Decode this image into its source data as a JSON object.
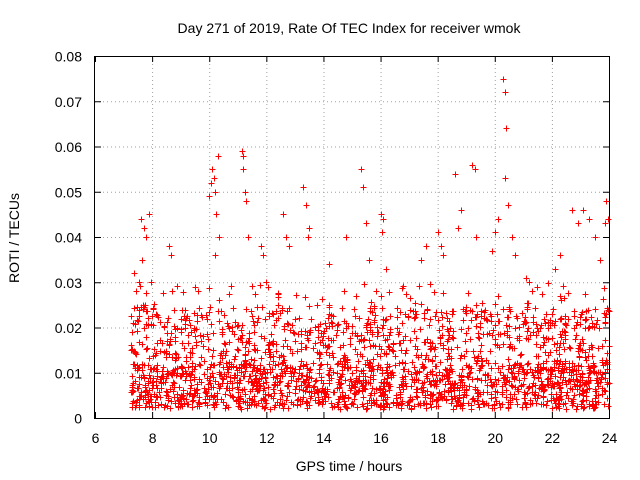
{
  "chart_data": {
    "type": "scatter",
    "title": "Day 271 of 2019, Rate Of TEC Index for receiver wmok",
    "xlabel": "GPS time / hours",
    "ylabel": "ROTI / TECUs",
    "xlim": [
      6,
      24
    ],
    "ylim": [
      0,
      0.08
    ],
    "xticks": [
      6,
      8,
      10,
      12,
      14,
      16,
      18,
      20,
      22,
      24
    ],
    "yticks": [
      0,
      0.01,
      0.02,
      0.03,
      0.04,
      0.05,
      0.06,
      0.07,
      0.08
    ],
    "xtick_labels": [
      "6",
      "8",
      "10",
      "12",
      "14",
      "16",
      "18",
      "20",
      "22",
      "24"
    ],
    "ytick_labels": [
      "0",
      "0.01",
      "0.02",
      "0.03",
      "0.04",
      "0.05",
      "0.06",
      "0.07",
      "0.08"
    ],
    "grid": true,
    "marker": "plus",
    "color": "#ff0000",
    "series": [
      {
        "name": "ROTI",
        "x": [
          7.35,
          7.6,
          7.7,
          7.8,
          7.9,
          7.45,
          7.55,
          7.65,
          7.75,
          7.85,
          7.95,
          8.6,
          8.65,
          8.7,
          9.5,
          9.6,
          10.0,
          10.1,
          10.15,
          10.2,
          10.25,
          10.3,
          10.35,
          10.05,
          10.2,
          11.15,
          11.2,
          11.25,
          11.3,
          11.2,
          11.35,
          11.8,
          11.9,
          12.0,
          12.6,
          12.7,
          12.8,
          13.3,
          13.4,
          13.5,
          13.45,
          14.2,
          14.8,
          15.3,
          15.4,
          15.5,
          15.6,
          16.0,
          16.1,
          16.05,
          16.2,
          17.4,
          17.6,
          18.0,
          18.1,
          18.2,
          18.6,
          18.7,
          18.8,
          19.2,
          19.3,
          19.35,
          19.9,
          20.0,
          20.1,
          20.3,
          20.35,
          20.4,
          20.35,
          20.45,
          20.6,
          20.7,
          21.1,
          21.2,
          21.3,
          22.1,
          22.3,
          22.7,
          22.9,
          23.1,
          23.3,
          23.5,
          23.7,
          23.9,
          23.95,
          23.85
        ],
        "y": [
          0.032,
          0.044,
          0.042,
          0.04,
          0.045,
          0.028,
          0.03,
          0.035,
          0.025,
          0.022,
          0.03,
          0.038,
          0.036,
          0.028,
          0.029,
          0.028,
          0.049,
          0.055,
          0.053,
          0.05,
          0.045,
          0.058,
          0.04,
          0.052,
          0.036,
          0.059,
          0.058,
          0.05,
          0.048,
          0.055,
          0.04,
          0.038,
          0.036,
          0.03,
          0.045,
          0.04,
          0.038,
          0.051,
          0.047,
          0.042,
          0.04,
          0.034,
          0.04,
          0.055,
          0.051,
          0.043,
          0.035,
          0.045,
          0.044,
          0.041,
          0.033,
          0.035,
          0.038,
          0.041,
          0.038,
          0.036,
          0.054,
          0.042,
          0.046,
          0.056,
          0.055,
          0.04,
          0.037,
          0.041,
          0.044,
          0.075,
          0.072,
          0.064,
          0.053,
          0.047,
          0.04,
          0.036,
          0.031,
          0.03,
          0.028,
          0.033,
          0.036,
          0.046,
          0.043,
          0.046,
          0.044,
          0.04,
          0.035,
          0.048,
          0.044,
          0.043
        ]
      }
    ],
    "dense_band": {
      "x_range": [
        7.25,
        24.0
      ],
      "y_base_range": [
        0.002,
        0.012
      ],
      "y_upper_typical": 0.03
    }
  }
}
